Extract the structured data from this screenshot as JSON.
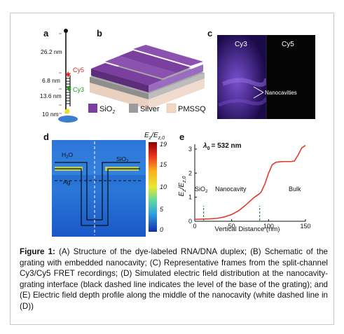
{
  "panels": {
    "a": {
      "letter": "a",
      "dims": [
        "26.2 nm",
        "6.8 nm",
        "13.6 nm",
        "10 nm"
      ],
      "cy5": "Cy5",
      "cy3": "Cy3"
    },
    "b": {
      "letter": "b",
      "legend": [
        "SiO",
        "Silver",
        "PMSSQ"
      ],
      "legend_colors": [
        "#7b3fa0",
        "#9b9b9b",
        "#f4d6c4"
      ]
    },
    "c": {
      "letter": "c",
      "left_label": "Cy3",
      "right_label": "Cy5",
      "annotation": "Nanocavities"
    },
    "d": {
      "letter": "d",
      "h2o": "H",
      "sio2": "SiO",
      "ag": "Ag",
      "colorbar_ticks": [
        "19",
        "15",
        "10",
        "5",
        "0"
      ],
      "colorbar_label": "E",
      "colorbar_label_sub": "z",
      "colorbar_label_mid": "/E",
      "colorbar_label_sub2": "z,0"
    },
    "e": {
      "letter": "e",
      "lambda_text": "= 532 nm",
      "lambda_symbol": "λ",
      "lambda_sub": "0",
      "region_sio2": "SiO",
      "region_nanocavity": "Nanocavity",
      "region_bulk": "Bulk",
      "xlabel": "Vertical Distance (nm)",
      "ylabel": "E",
      "ylabel_sub": "z",
      "ylabel_mid": "/E",
      "ylabel_sub2": "z,0",
      "line_color": "#e53a2a",
      "marker_color": "#2e8b3a"
    }
  },
  "chart_data": {
    "type": "line",
    "title": "",
    "xlabel": "Vertical Distance (nm)",
    "ylabel": "Ez/Ez,0",
    "xlim": [
      0,
      150
    ],
    "ylim": [
      0,
      3.2
    ],
    "xticks": [
      "0",
      "50",
      "100",
      "150"
    ],
    "yticks": [
      "0",
      "1",
      "2",
      "3"
    ],
    "grid": false,
    "series": [
      {
        "x": [
          0,
          10,
          20,
          30,
          40,
          50,
          60,
          70,
          80,
          88,
          90,
          95,
          100,
          105,
          110,
          115,
          120,
          125,
          130,
          135,
          140,
          145,
          150
        ],
        "values": [
          0.08,
          0.09,
          0.1,
          0.12,
          0.18,
          0.28,
          0.45,
          0.7,
          0.98,
          1.15,
          1.22,
          1.55,
          2.0,
          2.35,
          2.45,
          2.47,
          2.48,
          2.48,
          2.48,
          2.5,
          2.75,
          3.05,
          3.15
        ]
      }
    ],
    "markers_x": [
      12,
      88
    ]
  },
  "caption": {
    "label": "Figure 1:",
    "text": " (A) Structure of the dye-labeled RNA/DNA duplex; (B) Schematic of the grating with embedded nanocavity; (C) Representative frames from the split-channel Cy3/Cy5 FRET recordings; (D) Simulated electric field distribution at the nanocavity-grating interface (black dashed line indicates the level of the base of the grating); and (E) Electric field depth profile along the middle of the nanocavity (white dashed line in (D))"
  }
}
